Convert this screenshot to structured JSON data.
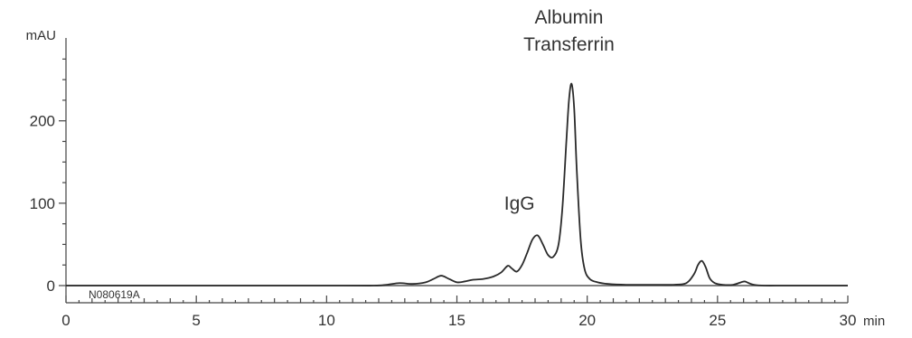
{
  "chart_data": {
    "type": "line",
    "title": "",
    "xlabel": "",
    "ylabel": "",
    "x_unit": "min",
    "y_unit": "mAU",
    "xlim": [
      0,
      30
    ],
    "ylim": [
      -20,
      300
    ],
    "x_ticks": [
      0,
      5,
      10,
      15,
      20,
      25,
      30
    ],
    "x_tick_labels": [
      "0",
      "5",
      "10",
      "15",
      "20",
      "25",
      "30"
    ],
    "y_ticks": [
      0,
      100,
      200
    ],
    "y_tick_labels": [
      "0",
      "100",
      "200"
    ],
    "grid": false,
    "legend": "none",
    "baseline_text": "N080619A",
    "annotations": [
      {
        "text": "IgG",
        "x": 17.4,
        "y": 92
      },
      {
        "text": "Albumin",
        "x": 19.3,
        "y": 318
      },
      {
        "text": "Transferrin",
        "x": 19.3,
        "y": 285
      }
    ],
    "series": [
      {
        "x": [
          0,
          5,
          10,
          11.8,
          12.3,
          12.8,
          13.3,
          13.8,
          14.1,
          14.4,
          14.7,
          15.0,
          15.3,
          15.6,
          16.0,
          16.4,
          16.7,
          16.95,
          17.1,
          17.3,
          17.5,
          17.7,
          17.9,
          18.1,
          18.3,
          18.5,
          18.7,
          18.9,
          19.05,
          19.2,
          19.3,
          19.4,
          19.5,
          19.6,
          19.75,
          19.9,
          20.1,
          20.4,
          20.8,
          21.5,
          22.5,
          23.3,
          23.8,
          24.1,
          24.25,
          24.4,
          24.55,
          24.7,
          24.9,
          25.2,
          25.6,
          25.9,
          26.05,
          26.2,
          26.4,
          26.8,
          27.5,
          28.5,
          30
        ],
        "y": [
          0,
          0,
          0,
          0,
          1,
          3,
          2,
          4,
          8,
          12,
          8,
          4,
          5,
          7,
          8,
          11,
          16,
          24,
          21,
          17,
          25,
          40,
          56,
          61,
          50,
          37,
          35,
          50,
          95,
          175,
          225,
          245,
          215,
          140,
          55,
          20,
          8,
          4,
          2,
          1,
          1,
          1,
          3,
          14,
          25,
          30,
          22,
          9,
          3,
          1,
          1,
          4,
          5,
          3,
          1,
          0,
          0,
          0,
          0
        ]
      }
    ]
  }
}
